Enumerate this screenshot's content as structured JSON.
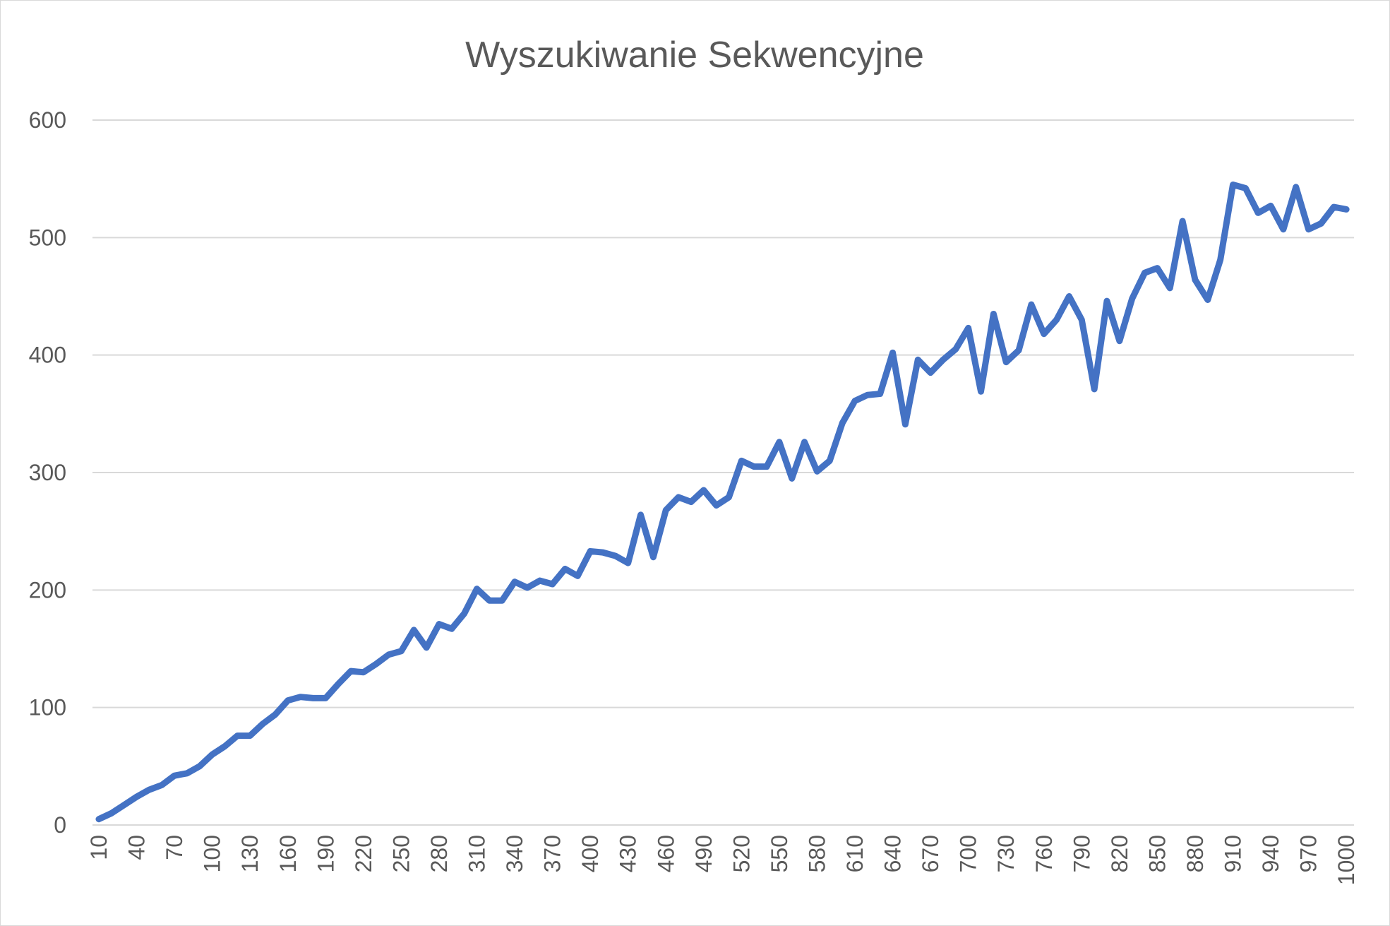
{
  "chart_data": {
    "type": "line",
    "title": "Wyszukiwanie Sekwencyjne",
    "xlabel": "",
    "ylabel": "",
    "ylim": [
      0,
      600
    ],
    "yticks": [
      0,
      100,
      200,
      300,
      400,
      500,
      600
    ],
    "x_tick_labels": [
      "10",
      "40",
      "70",
      "100",
      "130",
      "160",
      "190",
      "220",
      "250",
      "280",
      "310",
      "340",
      "370",
      "400",
      "430",
      "460",
      "490",
      "520",
      "550",
      "580",
      "610",
      "640",
      "670",
      "700",
      "730",
      "760",
      "790",
      "820",
      "850",
      "880",
      "910",
      "940",
      "970",
      "1000"
    ],
    "grid": true,
    "legend": "none",
    "colors": {
      "series": "#4472c4",
      "grid": "#d9d9d9",
      "text": "#595959"
    },
    "x": [
      10,
      20,
      30,
      40,
      50,
      60,
      70,
      80,
      90,
      100,
      110,
      120,
      130,
      140,
      150,
      160,
      170,
      180,
      190,
      200,
      210,
      220,
      230,
      240,
      250,
      260,
      270,
      280,
      290,
      300,
      310,
      320,
      330,
      340,
      350,
      360,
      370,
      380,
      390,
      400,
      410,
      420,
      430,
      440,
      450,
      460,
      470,
      480,
      490,
      500,
      510,
      520,
      530,
      540,
      550,
      560,
      570,
      580,
      590,
      600,
      610,
      620,
      630,
      640,
      650,
      660,
      670,
      680,
      690,
      700,
      710,
      720,
      730,
      740,
      750,
      760,
      770,
      780,
      790,
      800,
      810,
      820,
      830,
      840,
      850,
      860,
      870,
      880,
      890,
      900,
      910,
      920,
      930,
      940,
      950,
      960,
      970,
      980,
      990,
      1000
    ],
    "series": [
      {
        "values": [
          5,
          10,
          17,
          24,
          30,
          34,
          42,
          44,
          50,
          60,
          67,
          76,
          76,
          86,
          94,
          106,
          109,
          108,
          108,
          120,
          131,
          130,
          137,
          145,
          148,
          166,
          151,
          171,
          167,
          180,
          201,
          191,
          191,
          207,
          202,
          208,
          205,
          218,
          212,
          233,
          232,
          229,
          223,
          264,
          228,
          268,
          279,
          275,
          285,
          272,
          279,
          310,
          305,
          305,
          326,
          295,
          326,
          301,
          310,
          342,
          361,
          366,
          367,
          402,
          341,
          396,
          385,
          396,
          405,
          423,
          369,
          435,
          394,
          404,
          443,
          418,
          430,
          450,
          430,
          371,
          446,
          412,
          448,
          470,
          474,
          457,
          514,
          464,
          447,
          481,
          545,
          542,
          521,
          527,
          507,
          543,
          507,
          512,
          526,
          524
        ]
      }
    ]
  }
}
